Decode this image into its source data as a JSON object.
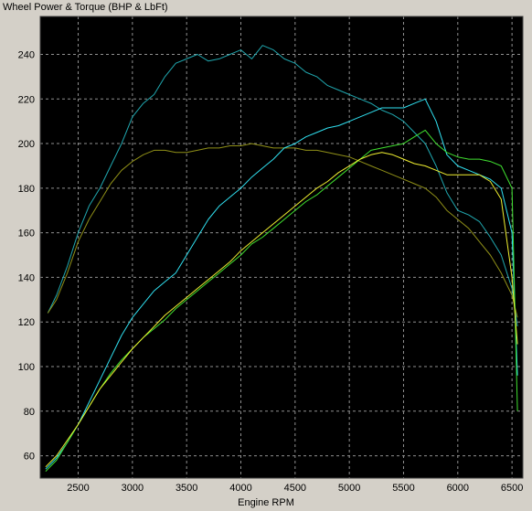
{
  "chart_data": {
    "type": "line",
    "title": "Wheel Power & Torque (BHP & LbFt)",
    "xlabel": "Engine RPM",
    "ylabel": "",
    "xlim": [
      2150,
      6600
    ],
    "ylim": [
      50,
      257
    ],
    "xticks": [
      2500,
      3000,
      3500,
      4000,
      4500,
      5000,
      5500,
      6000,
      6500
    ],
    "yticks": [
      60,
      80,
      100,
      120,
      140,
      160,
      180,
      200,
      220,
      240
    ],
    "grid": true,
    "background": "#000000",
    "series": [
      {
        "color": "#20a8b0",
        "x": [
          2220,
          2300,
          2400,
          2500,
          2600,
          2700,
          2800,
          2900,
          3000,
          3100,
          3200,
          3300,
          3400,
          3500,
          3600,
          3700,
          3800,
          3900,
          4000,
          4100,
          4200,
          4300,
          4400,
          4500,
          4600,
          4700,
          4800,
          4900,
          5000,
          5100,
          5200,
          5300,
          5400,
          5500,
          5600,
          5700,
          5800,
          5900,
          6000,
          6100,
          6200,
          6300,
          6400,
          6500,
          6550
        ],
        "y": [
          124,
          132,
          145,
          160,
          172,
          180,
          190,
          200,
          212,
          218,
          222,
          230,
          236,
          238,
          240,
          237,
          238,
          240,
          242,
          238,
          244,
          242,
          238,
          236,
          232,
          230,
          226,
          224,
          222,
          220,
          218,
          215,
          213,
          210,
          205,
          200,
          190,
          178,
          170,
          168,
          165,
          158,
          150,
          135,
          118
        ]
      },
      {
        "color": "#909018",
        "x": [
          2220,
          2300,
          2400,
          2500,
          2600,
          2700,
          2800,
          2900,
          3000,
          3100,
          3200,
          3300,
          3400,
          3500,
          3600,
          3700,
          3800,
          3900,
          4000,
          4100,
          4200,
          4300,
          4400,
          4500,
          4600,
          4700,
          4800,
          4900,
          5000,
          5100,
          5200,
          5300,
          5400,
          5500,
          5600,
          5700,
          5800,
          5900,
          6000,
          6100,
          6200,
          6300,
          6400,
          6500,
          6550
        ],
        "y": [
          124,
          130,
          142,
          156,
          166,
          174,
          182,
          188,
          192,
          195,
          197,
          197,
          196,
          196,
          197,
          198,
          198,
          199,
          199,
          200,
          199,
          198,
          198,
          198,
          197,
          197,
          196,
          195,
          194,
          192,
          190,
          188,
          186,
          184,
          182,
          180,
          176,
          170,
          166,
          162,
          156,
          150,
          142,
          132,
          122
        ]
      },
      {
        "color": "#30e0f0",
        "x": [
          2200,
          2300,
          2400,
          2500,
          2600,
          2700,
          2800,
          2900,
          3000,
          3100,
          3200,
          3300,
          3400,
          3500,
          3600,
          3700,
          3800,
          3900,
          4000,
          4100,
          4200,
          4300,
          4400,
          4500,
          4600,
          4700,
          4800,
          4900,
          5000,
          5100,
          5200,
          5300,
          5400,
          5500,
          5600,
          5700,
          5800,
          5900,
          6000,
          6100,
          6200,
          6300,
          6400,
          6500,
          6550
        ],
        "y": [
          54,
          59,
          66,
          74,
          84,
          94,
          104,
          114,
          122,
          128,
          134,
          138,
          142,
          150,
          158,
          166,
          172,
          176,
          180,
          185,
          189,
          193,
          198,
          200,
          203,
          205,
          207,
          208,
          210,
          212,
          214,
          216,
          216,
          216,
          218,
          220,
          210,
          195,
          190,
          188,
          186,
          184,
          180,
          160,
          96
        ]
      },
      {
        "color": "#40e030",
        "x": [
          2200,
          2300,
          2400,
          2500,
          2600,
          2700,
          2800,
          2900,
          3000,
          3100,
          3200,
          3300,
          3400,
          3500,
          3600,
          3700,
          3800,
          3900,
          4000,
          4100,
          4200,
          4300,
          4400,
          4500,
          4600,
          4700,
          4800,
          4900,
          5000,
          5100,
          5200,
          5300,
          5400,
          5500,
          5600,
          5700,
          5800,
          5900,
          6000,
          6100,
          6200,
          6300,
          6400,
          6500,
          6550
        ],
        "y": [
          53,
          58,
          66,
          74,
          82,
          90,
          97,
          103,
          108,
          113,
          117,
          121,
          126,
          130,
          134,
          138,
          142,
          146,
          150,
          155,
          158,
          162,
          166,
          170,
          174,
          177,
          181,
          185,
          189,
          193,
          197,
          198,
          199,
          200,
          203,
          206,
          200,
          196,
          194,
          193,
          193,
          192,
          190,
          180,
          80
        ]
      },
      {
        "color": "#f0f030",
        "x": [
          2200,
          2300,
          2400,
          2500,
          2600,
          2700,
          2800,
          2900,
          3000,
          3100,
          3200,
          3300,
          3400,
          3500,
          3600,
          3700,
          3800,
          3900,
          4000,
          4100,
          4200,
          4300,
          4400,
          4500,
          4600,
          4700,
          4800,
          4900,
          5000,
          5100,
          5200,
          5300,
          5400,
          5500,
          5600,
          5700,
          5800,
          5900,
          6000,
          6100,
          6200,
          6300,
          6400,
          6500,
          6550
        ],
        "y": [
          55,
          60,
          67,
          74,
          82,
          90,
          96,
          102,
          108,
          113,
          118,
          123,
          127,
          131,
          135,
          139,
          143,
          147,
          152,
          156,
          160,
          164,
          168,
          172,
          176,
          180,
          183,
          187,
          190,
          193,
          195,
          196,
          195,
          193,
          191,
          190,
          188,
          186,
          186,
          186,
          186,
          183,
          175,
          140,
          110
        ]
      }
    ]
  }
}
